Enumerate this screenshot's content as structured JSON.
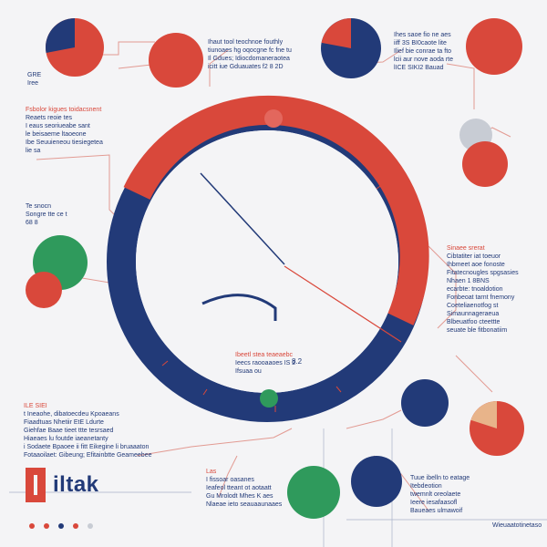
{
  "colors": {
    "background": "#f4f4f6",
    "red": "#d9483b",
    "navy": "#223a78",
    "green": "#2f9a5c",
    "peach": "#e8b48a",
    "grey": "#c8ccd4"
  },
  "brand": {
    "name": "iltak"
  },
  "ring": {
    "center_label": "8.2"
  },
  "text_blocks": [
    {
      "id": "top-center",
      "lines": [
        "Ihaut tool teochnoe fouthly",
        "tiunoaes hg oqocgne fc fne tu",
        "Il Gdues; Idiocdomaneraotea",
        "icitt iue Gduauates f2 8 2D"
      ]
    },
    {
      "id": "top-right",
      "lines": [
        "Ihes saoe fio ne aes",
        "iiff 3S BI0caote lite",
        "Ilief bie conrae ta fto",
        "lcii aur nove aoda rte",
        "lICE SIKI2 Bauad"
      ]
    },
    {
      "id": "left-upper",
      "lines": [
        "Fsbolor kigues toidacsnent",
        "Reaets reoie tes",
        "I eaus seoriueabe sant",
        "le beisaeme ltaoeone",
        "Ibe Seuuieneou tiesiegetea",
        "lie sa"
      ]
    },
    {
      "id": "left-mid",
      "lines": [
        "Te snocn",
        "Songre tte ce t",
        "68 8"
      ]
    },
    {
      "id": "right-mid",
      "lines": [
        "Sinaee srerat",
        "Cibtatiter iat toeuor",
        "Ihbmeet aoe fonoste",
        "Fitatecnougles spgsasies",
        "Nhaen 1 8BNS",
        "ecarbte: tnoaldotion",
        "Fonbeoat tarnt fnemony",
        "Coeteliaenotfog st",
        "Simaunnageraeua",
        "Blbeuatfoo cteettte",
        "seuate ble fitbonatiim"
      ]
    },
    {
      "id": "center-lower",
      "lines": [
        "Ibeetl stea teaeaebc",
        "Ieecs raooaaoes IS 2",
        "Ifsuaa ou"
      ]
    },
    {
      "id": "left-lower",
      "lines": [
        "ILE SIEI",
        "t Ineaohe, dibatoecdeu Kpoaeans",
        "Fiaadtuas Nhetiir EtE Ldurte",
        "Giehfae Baae tieet ttte tesrsaed",
        "Hiaeaes lu foutde iaeanetanty",
        "i Sodaete Bpaoee ii fitt Eikegine li bruaaaton",
        "Fotaaoilaet: Gibeung; Efitainbtte Geameebee"
      ]
    },
    {
      "id": "bottom-center",
      "lines": [
        "Las",
        "I fissoar oasanes",
        "Ieafeol tteant ot aotaatt",
        "Gu Mrolodt Mhes K aes",
        "Nlaeae ieto seauaaunaaes"
      ]
    },
    {
      "id": "bottom-right",
      "lines": [
        "Tuue ibelln to eatage",
        "Itebdeotion",
        "twemnlt oreolaete",
        "Ieere iesafaasofl",
        "Baueaes ulmawoif"
      ]
    },
    {
      "id": "legend-topleft",
      "lines": [
        "GRE",
        "Iree"
      ]
    },
    {
      "id": "footer-right",
      "lines": [
        "Wieuaatotinetaso"
      ]
    }
  ]
}
